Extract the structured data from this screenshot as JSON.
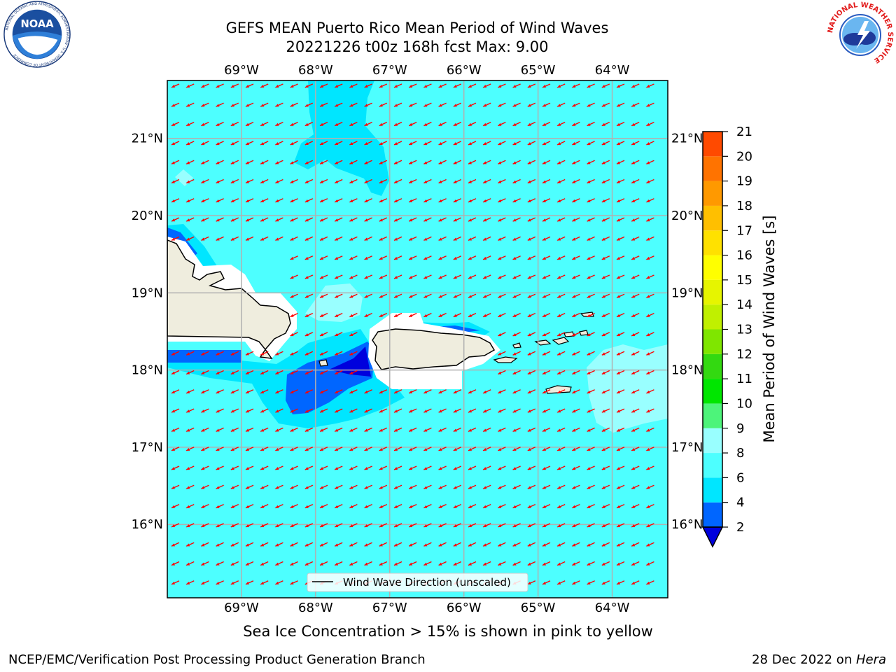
{
  "header": {
    "title_line1": "GEFS MEAN Puerto Rico Mean Period of Wind Waves",
    "title_line2": "20221226 t00z 168h fcst   Max: 9.00"
  },
  "logos": {
    "left": "noaa-logo",
    "left_text": "NOAA",
    "left_ring_text": "NATIONAL OCEANIC AND ATMOSPHERIC ADMINISTRATION · U.S. DEPARTMENT OF COMMERCE",
    "right": "nws-logo",
    "right_ring_text": "NATIONAL WEATHER SERVICE"
  },
  "map": {
    "lon_range": [
      -70.0,
      -63.25
    ],
    "lat_range": [
      15.05,
      21.75
    ],
    "lon_ticks": [
      "69°W",
      "68°W",
      "67°W",
      "66°W",
      "65°W",
      "64°W"
    ],
    "lon_values": [
      -69,
      -68,
      -67,
      -66,
      -65,
      -64
    ],
    "lat_ticks": [
      "21°N",
      "20°N",
      "19°N",
      "18°N",
      "17°N",
      "16°N"
    ],
    "lat_values": [
      21,
      20,
      19,
      18,
      17,
      16
    ],
    "gridlines": true,
    "ocean_color": "#4dffff",
    "land_color": "#efedde",
    "vector_color": "#ff0000",
    "legend_label": "Wind Wave Direction (unscaled)",
    "legend_position": "bottom-center",
    "wind_direction_from": "northeast"
  },
  "colorbar": {
    "label": "Mean Period of Wind Waves [s]",
    "ticks": [
      "2",
      "4",
      "6",
      "8",
      "9",
      "10",
      "11",
      "12",
      "13",
      "14",
      "15",
      "16",
      "17",
      "18",
      "19",
      "20",
      "21"
    ],
    "colors": [
      "#0066ff",
      "#00e6ff",
      "#4dffff",
      "#99ffff",
      "#4df47a",
      "#00e600",
      "#33d911",
      "#7fe600",
      "#c0f000",
      "#e6f500",
      "#ffff00",
      "#ffe100",
      "#ffbf00",
      "#ff9900",
      "#ff7300",
      "#ff4a00",
      "#ff1a00"
    ],
    "under_color": "#0000dd"
  },
  "footer": {
    "left": "NCEP/EMC/Verification Post Processing Product Generation Branch",
    "right_date": "28 Dec 2022 on ",
    "right_host": "Hera",
    "sea_ice_note": "Sea Ice Concentration > 15% is shown in pink to yellow"
  }
}
